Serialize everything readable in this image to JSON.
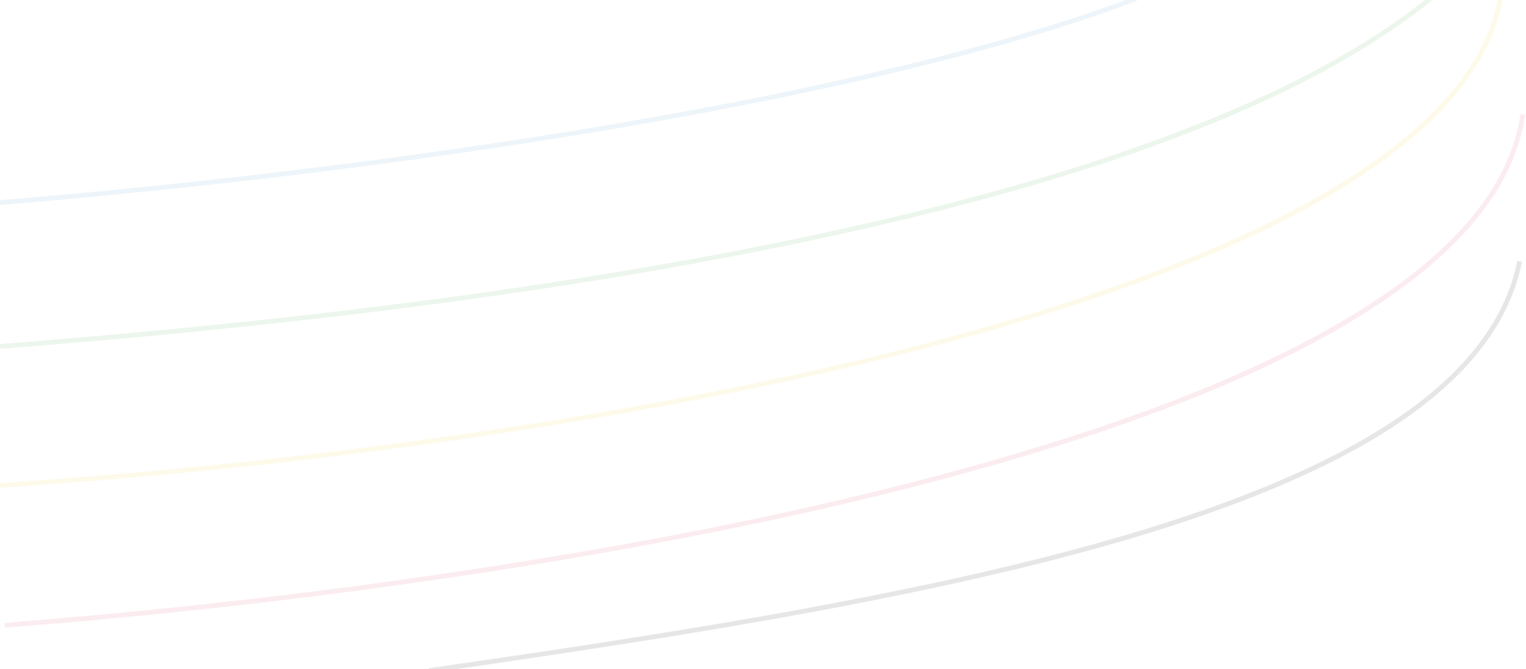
{
  "background": {
    "color": "#ffffff",
    "curves": [
      {
        "name": "blue-curve",
        "color": "#edf5fa"
      },
      {
        "name": "green-curve",
        "color": "#ecf6ec"
      },
      {
        "name": "yellow-curve",
        "color": "#fefaea"
      },
      {
        "name": "pink-curve",
        "color": "#fbecf0"
      },
      {
        "name": "gray-curve",
        "color": "#e6e6e6"
      }
    ]
  }
}
